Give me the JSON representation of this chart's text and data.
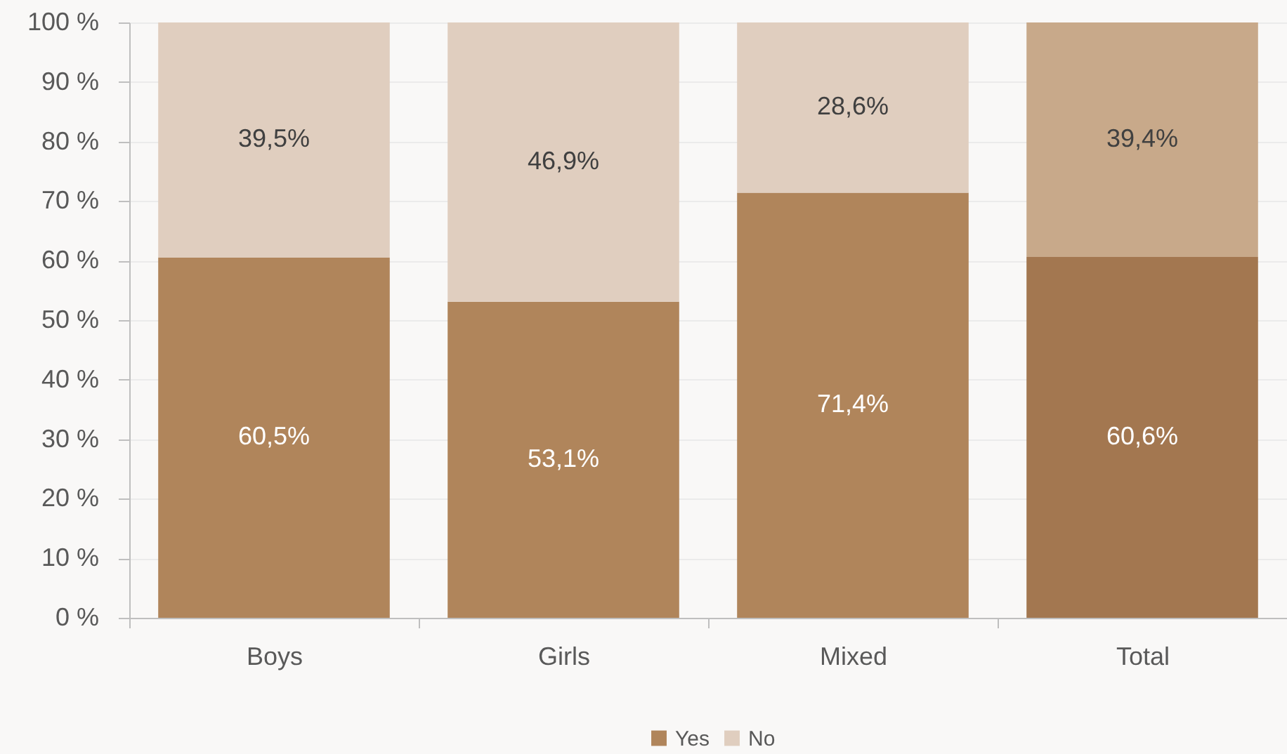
{
  "chart_data": {
    "type": "bar",
    "stacked": true,
    "categories": [
      "Boys",
      "Girls",
      "Mixed",
      "Total"
    ],
    "series": [
      {
        "name": "Yes",
        "color": "#b0855b",
        "colors": [
          "#b0855b",
          "#b0855b",
          "#b0855b",
          "#a37750"
        ],
        "values": [
          60.5,
          53.1,
          71.4,
          60.6
        ],
        "value_labels": [
          "60,5%",
          "53,1%",
          "71,4%",
          "60,6%"
        ]
      },
      {
        "name": "No",
        "color": "#e0cebf",
        "colors": [
          "#e0cebf",
          "#e0cebf",
          "#e0cebf",
          "#c8a98a"
        ],
        "values": [
          39.5,
          46.9,
          28.6,
          39.4
        ],
        "value_labels": [
          "39,5%",
          "46,9%",
          "28,6%",
          "39,4%"
        ]
      }
    ],
    "ylim": [
      0,
      100
    ],
    "yticks": [
      {
        "value": 0,
        "label": "0 %"
      },
      {
        "value": 10,
        "label": "10 %"
      },
      {
        "value": 20,
        "label": "20 %"
      },
      {
        "value": 30,
        "label": "30 %"
      },
      {
        "value": 40,
        "label": "40 %"
      },
      {
        "value": 50,
        "label": "50 %"
      },
      {
        "value": 60,
        "label": "60 %"
      },
      {
        "value": 70,
        "label": "70 %"
      },
      {
        "value": 80,
        "label": "80 %"
      },
      {
        "value": 90,
        "label": "90 %"
      },
      {
        "value": 100,
        "label": "100 %"
      }
    ],
    "grid": "y",
    "legend": "bottom"
  }
}
